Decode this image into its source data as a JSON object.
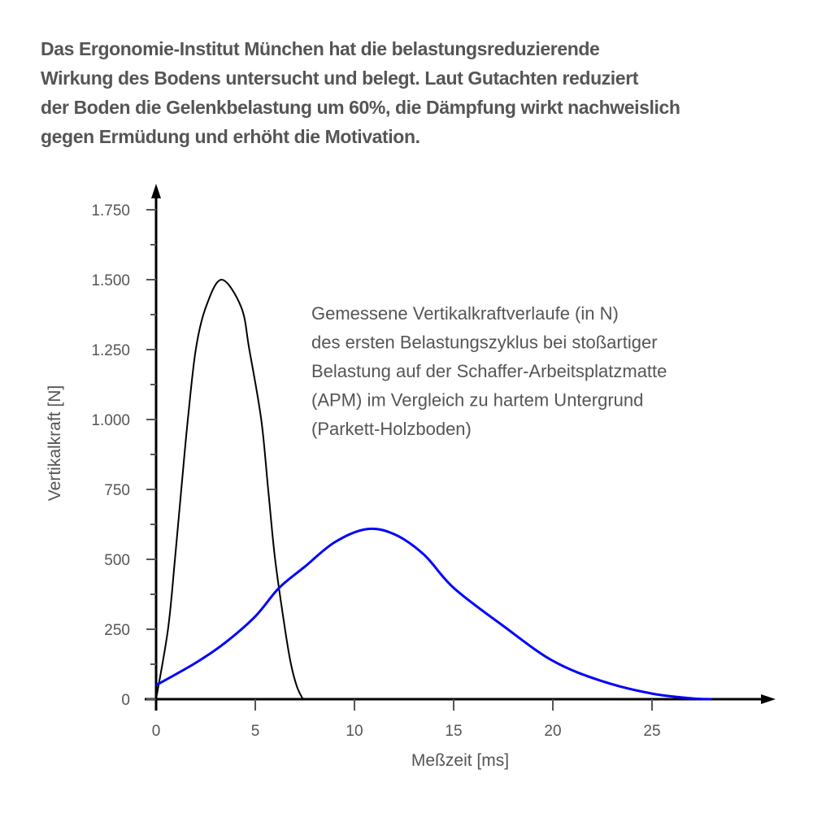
{
  "intro": {
    "lines": [
      "Das Ergonomie-Institut München hat die belastungsreduzierende",
      "Wirkung des Bodens untersucht und belegt. Laut Gutachten reduziert",
      "der Boden die Gelenkbelastung um 60%, die Dämpfung wirkt nachweislich",
      "gegen Ermüdung und erhöht die Motivation."
    ]
  },
  "chart_data": {
    "type": "line",
    "xlabel": "Meßzeit [ms]",
    "ylabel": "Vertikalkraft [N]",
    "xlim": [
      0,
      31
    ],
    "ylim": [
      0,
      1750
    ],
    "x_ticks": [
      0,
      5,
      10,
      15,
      20,
      25
    ],
    "x_tick_labels": [
      "0",
      "5",
      "10",
      "15",
      "20",
      "25"
    ],
    "y_ticks": [
      0,
      250,
      500,
      750,
      1000,
      1250,
      1500,
      1750
    ],
    "y_tick_labels": [
      "0",
      "250",
      "500",
      "750",
      "1.000",
      "1.250",
      "1.500",
      "1.750"
    ],
    "grid": false,
    "annotation": [
      "Gemessene Vertikalkraftverlaufe (in N)",
      "des ersten Belastungszyklus bei stoßartiger",
      "Belastung auf der Schaffer-Arbeitsplatzmatte",
      "(APM) im Vergleich zu hartem Untergrund",
      "(Parkett-Holzboden)"
    ],
    "series": [
      {
        "color": "#000000",
        "x": [
          0,
          0.6,
          0.95,
          1.27,
          1.6,
          2.0,
          2.5,
          3.3,
          4.3,
          4.7,
          5.3,
          5.65,
          6.0,
          6.5,
          6.8,
          7.1,
          7.4
        ],
        "y": [
          0,
          250,
          500,
          750,
          1000,
          1250,
          1400,
          1500,
          1400,
          1250,
          1000,
          750,
          500,
          250,
          125,
          45,
          0
        ]
      },
      {
        "color": "#0000ff",
        "x": [
          0,
          2,
          3.5,
          5,
          6.2,
          7.5,
          9,
          10.6,
          12,
          13.5,
          15,
          17.5,
          20,
          22.5,
          25,
          27,
          28
        ],
        "y": [
          50,
          130,
          203,
          296,
          398,
          474,
          561,
          608,
          590,
          517,
          398,
          262,
          137,
          64,
          20,
          3,
          0
        ]
      }
    ]
  }
}
